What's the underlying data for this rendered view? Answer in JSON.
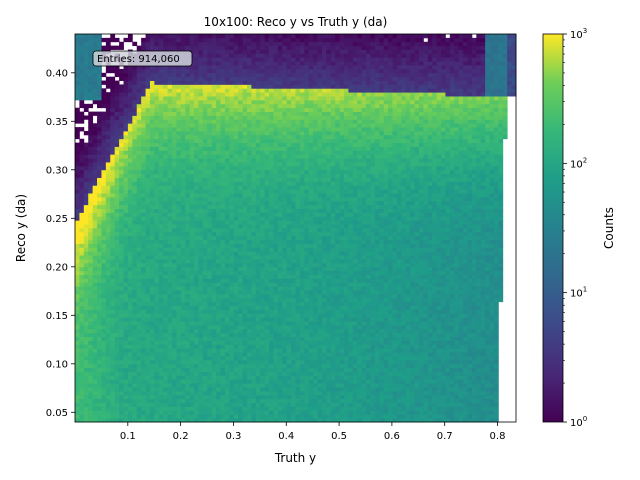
{
  "chart_data": {
    "type": "heatmap",
    "title": "10x100: Reco y vs Truth y (da)",
    "xlabel": "Truth y",
    "ylabel": "Reco y (da)",
    "xlim": [
      0.0,
      0.835
    ],
    "ylim": [
      0.04,
      0.44
    ],
    "x_ticks": [
      0.1,
      0.2,
      0.3,
      0.4,
      0.5,
      0.6,
      0.7,
      0.8
    ],
    "x_tick_labels": [
      "0.1",
      "0.2",
      "0.3",
      "0.4",
      "0.5",
      "0.6",
      "0.7",
      "0.8"
    ],
    "y_ticks": [
      0.05,
      0.1,
      0.15,
      0.2,
      0.25,
      0.3,
      0.35,
      0.4
    ],
    "y_tick_labels": [
      "0.05",
      "0.10",
      "0.15",
      "0.20",
      "0.25",
      "0.30",
      "0.35",
      "0.40"
    ],
    "annotation": "Entries: 914,060",
    "colorbar": {
      "label": "Counts",
      "scale": "log",
      "range": [
        1,
        1000
      ],
      "colormap": "viridis",
      "ticks": [
        1,
        10,
        100,
        1000
      ],
      "tick_labels": [
        "10",
        "10",
        "10",
        "10"
      ],
      "tick_exponents": [
        "0",
        "1",
        "2",
        "3"
      ]
    },
    "bins": {
      "nx": 100,
      "ny": 100
    },
    "profile": {
      "diagonal_peak_counts": 1000,
      "plateau_y": 0.39,
      "plateau_y_at_right_edge": 0.375,
      "plateau_start_x": 0.15,
      "right_edge_x": 0.8,
      "bulk_counts_left": 120,
      "bulk_counts_right": 45,
      "halo_counts": 4
    },
    "grid": false
  }
}
